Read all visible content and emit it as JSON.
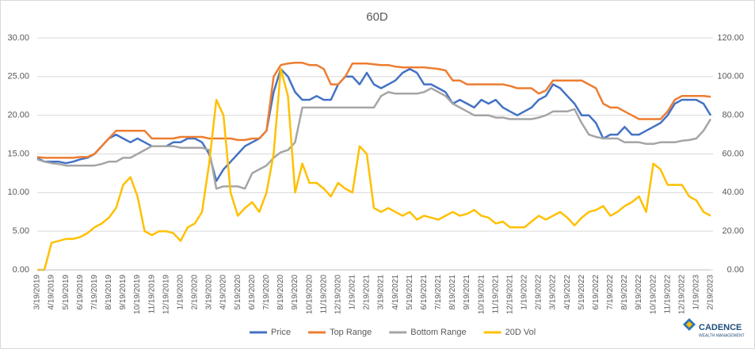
{
  "chart_data": {
    "type": "line",
    "title": "60D",
    "x": [
      "3/19/2019",
      null,
      "4/19/2019",
      null,
      "5/19/2019",
      null,
      "6/19/2019",
      null,
      "7/19/2019",
      null,
      "8/19/2019",
      null,
      "9/19/2019",
      null,
      "10/19/2019",
      null,
      "11/19/2019",
      null,
      "12/19/2019",
      null,
      "1/19/2020",
      null,
      "2/19/2020",
      null,
      "3/19/2020",
      null,
      "4/19/2020",
      null,
      "5/19/2020",
      null,
      "6/19/2020",
      null,
      "7/19/2020",
      null,
      "8/19/2020",
      null,
      "9/19/2020",
      null,
      "10/19/2020",
      null,
      "11/19/2020",
      null,
      "12/19/2020",
      null,
      "1/19/2021",
      null,
      "2/19/2021",
      null,
      "3/19/2021",
      null,
      "4/19/2021",
      null,
      "5/19/2021",
      null,
      "6/19/2021",
      null,
      "7/19/2021",
      null,
      "8/19/2021",
      null,
      "9/19/2021",
      null,
      "10/19/2021",
      null,
      "11/19/2021",
      null,
      "12/19/2021",
      null,
      "1/19/2022",
      null,
      "2/19/2022",
      null,
      "3/19/2022",
      null,
      "4/19/2022",
      null,
      "5/19/2022",
      null,
      "6/19/2022",
      null,
      "7/19/2022",
      null,
      "8/19/2022",
      null,
      "9/19/2022",
      null,
      "10/19/2022",
      null,
      "11/19/2022",
      null,
      "12/19/2022",
      null,
      "1/19/2023",
      null,
      "2/19/2023"
    ],
    "series": [
      {
        "name": "Price",
        "color": "#4472c4",
        "values": [
          14.5,
          14,
          14,
          14,
          13.8,
          14,
          14.3,
          14.5,
          15,
          16,
          17,
          17.5,
          17,
          16.5,
          17,
          16.5,
          16,
          16,
          16,
          16.5,
          16.5,
          17,
          17,
          16.5,
          15,
          11.5,
          13,
          14,
          15,
          16,
          16.5,
          17,
          18,
          23,
          26,
          25,
          23,
          22,
          22,
          22.5,
          22,
          22,
          24,
          25,
          25,
          24,
          25.5,
          24,
          23.5,
          24,
          24.5,
          25.5,
          26,
          25.5,
          24,
          24,
          23.5,
          23,
          21.5,
          22,
          21.5,
          21,
          22,
          21.5,
          22,
          21,
          20.5,
          20,
          20.5,
          21,
          22,
          22.5,
          24,
          23.5,
          22.5,
          21.5,
          20,
          20,
          19,
          17,
          17.5,
          17.5,
          18.5,
          17.5,
          17.5,
          18,
          18.5,
          19,
          20,
          21.5,
          22,
          22,
          22,
          21.5,
          20
        ]
      },
      {
        "name": "Top Range",
        "color": "#ed7d31",
        "values": [
          14.6,
          14.5,
          14.5,
          14.5,
          14.5,
          14.5,
          14.6,
          14.6,
          15,
          16,
          17,
          18,
          18,
          18,
          18,
          18,
          17,
          17,
          17,
          17,
          17.2,
          17.2,
          17.2,
          17.2,
          17,
          17,
          17,
          17,
          16.8,
          16.8,
          17,
          17,
          18,
          25,
          26.5,
          26.7,
          26.8,
          26.8,
          26.5,
          26.5,
          26,
          24,
          24,
          25,
          26.7,
          26.7,
          26.7,
          26.6,
          26.5,
          26.5,
          26.3,
          26.2,
          26.2,
          26.2,
          26.2,
          26.1,
          26,
          25.8,
          24.5,
          24.5,
          24,
          24,
          24,
          24,
          24,
          24,
          23.8,
          23.5,
          23.5,
          23.5,
          22.8,
          23.2,
          24.5,
          24.5,
          24.5,
          24.5,
          24.5,
          24,
          23.5,
          21.5,
          21,
          21,
          20.5,
          20,
          19.5,
          19.5,
          19.5,
          19.5,
          20.5,
          22,
          22.5,
          22.5,
          22.5,
          22.5,
          22.4
        ]
      },
      {
        "name": "Bottom Range",
        "color": "#a5a5a5",
        "values": [
          14.3,
          14,
          13.8,
          13.7,
          13.5,
          13.5,
          13.5,
          13.5,
          13.5,
          13.7,
          14,
          14,
          14.5,
          14.5,
          15,
          15.5,
          16,
          16,
          16,
          16,
          15.8,
          15.8,
          15.8,
          15.8,
          15.5,
          10.5,
          10.8,
          10.8,
          10.8,
          10.5,
          12.5,
          13,
          13.5,
          14.5,
          15.2,
          15.5,
          16.5,
          21,
          21,
          21,
          21,
          21,
          21,
          21,
          21,
          21,
          21,
          21,
          22.5,
          23,
          22.8,
          22.8,
          22.8,
          22.8,
          23,
          23.5,
          23,
          22.5,
          21.5,
          21,
          20.5,
          20,
          20,
          20,
          19.7,
          19.7,
          19.5,
          19.5,
          19.5,
          19.5,
          19.7,
          20,
          20.5,
          20.5,
          20.5,
          20.8,
          19,
          17.5,
          17.2,
          17,
          17,
          17,
          16.5,
          16.5,
          16.5,
          16.3,
          16.3,
          16.5,
          16.5,
          16.5,
          16.7,
          16.8,
          17,
          18,
          19.5
        ]
      },
      {
        "name": "20D Vol",
        "color": "#ffc000",
        "axis": "y2",
        "values": [
          0,
          0,
          14,
          15,
          16,
          16,
          17,
          19,
          22,
          24,
          27,
          32,
          44,
          48,
          38,
          20,
          18,
          20,
          20,
          19,
          15,
          22,
          24,
          30,
          55,
          88,
          80,
          40,
          28,
          32,
          35,
          30,
          40,
          60,
          104,
          90,
          40,
          55,
          45,
          45,
          42,
          38,
          45,
          42,
          40,
          64,
          60,
          32,
          30,
          32,
          30,
          28,
          30,
          26,
          28,
          27,
          26,
          28,
          30,
          28,
          29,
          31,
          28,
          27,
          24,
          25,
          22,
          22,
          22,
          25,
          28,
          26,
          28,
          30,
          27,
          23,
          27,
          30,
          31,
          33,
          28,
          30,
          33,
          35,
          38,
          30,
          55,
          52,
          44,
          44,
          44,
          38,
          36,
          30,
          28
        ]
      }
    ],
    "ylim": [
      0,
      30
    ],
    "yticks": [
      {
        "value": 0,
        "label": "0.00"
      },
      {
        "value": 5,
        "label": "5.00"
      },
      {
        "value": 10,
        "label": "10.00"
      },
      {
        "value": 15,
        "label": "15.00"
      },
      {
        "value": 20,
        "label": "20.00"
      },
      {
        "value": 25,
        "label": "25.00"
      },
      {
        "value": 30,
        "label": "30.00"
      }
    ],
    "y2lim": [
      0,
      120
    ],
    "y2ticks": [
      {
        "value": 0,
        "label": "0.00"
      },
      {
        "value": 20,
        "label": "20.00"
      },
      {
        "value": 40,
        "label": "40.00"
      },
      {
        "value": 60,
        "label": "60.00"
      },
      {
        "value": 80,
        "label": "80.00"
      },
      {
        "value": 100,
        "label": "100.00"
      },
      {
        "value": 120,
        "label": "120.00"
      }
    ],
    "grid": true,
    "legend": "bottom"
  },
  "logo": {
    "name": "CADENCE",
    "tagline": "WEALTH MANAGEMENT"
  }
}
